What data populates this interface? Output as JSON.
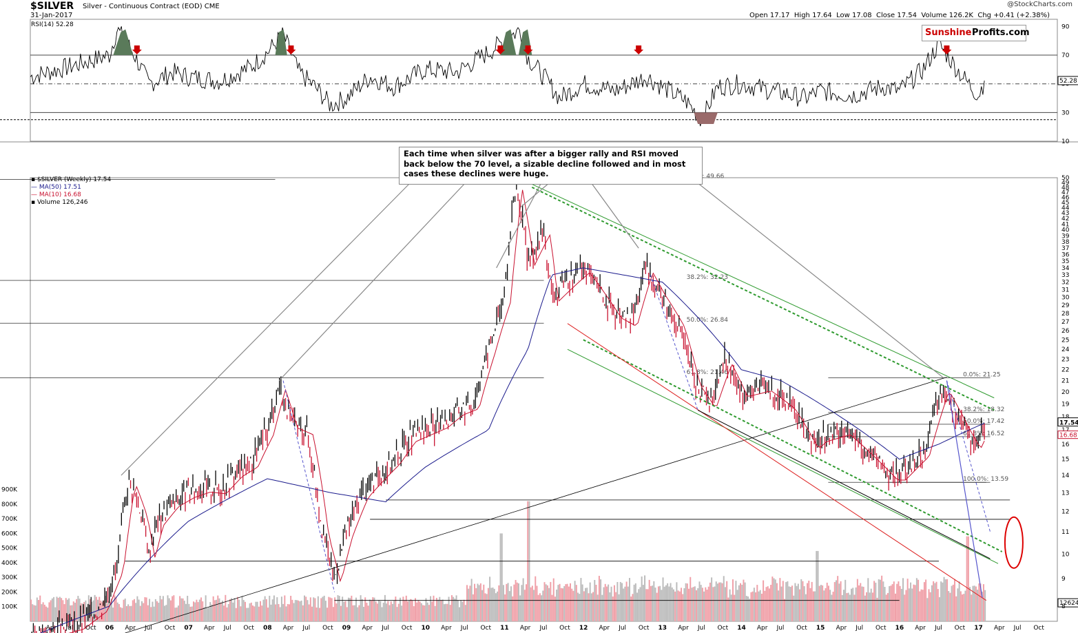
{
  "header": {
    "symbol": "$SILVER",
    "subtitle": "Silver - Continuous Contract (EOD)  CME",
    "date": "31-Jan-2017",
    "credit": "@StockCharts.com",
    "open_label": "Open",
    "open": "17.17",
    "high_label": "High",
    "high": "17.64",
    "low_label": "Low",
    "low": "17.08",
    "close_label": "Close",
    "close": "17.54",
    "volume_label": "Volume",
    "volume": "126.2K",
    "chg_label": "Chg",
    "chg": "+0.41 (+2.38%)"
  },
  "brand": {
    "part1": "Sunshine",
    "part2": "Profits.com"
  },
  "annotation": "Each time when silver was after a bigger rally and RSI moved back below the 70 level, a sizable decline followed and in most cases these declines were huge.",
  "colors": {
    "up": "#000000",
    "down": "#c8102e",
    "ma50": "#1a1a8c",
    "ma10": "#c8102e",
    "green": "#2e9a2e",
    "rsi_fill_ob": "#5a7a5a",
    "rsi_fill_os": "#9a6a6a",
    "arrow": "#cc0000",
    "volume": "#b0b0b0"
  },
  "chart_data": [
    {
      "type": "line",
      "name": "RSI(14) 52.28",
      "ylim": [
        10,
        95
      ],
      "hlines": [
        70,
        50,
        30
      ],
      "yticks": [
        "90",
        "70",
        "50",
        "30",
        "10"
      ],
      "last_value": "52.28",
      "x": [
        2005.0,
        2005.5,
        2006.0,
        2006.1,
        2006.3,
        2006.5,
        2006.8,
        2007.0,
        2007.4,
        2007.8,
        2008.0,
        2008.2,
        2008.4,
        2008.6,
        2008.8,
        2009.0,
        2009.3,
        2009.6,
        2010.0,
        2010.4,
        2010.8,
        2011.0,
        2011.2,
        2011.3,
        2011.5,
        2011.7,
        2012.0,
        2012.4,
        2012.8,
        2013.0,
        2013.3,
        2013.5,
        2013.7,
        2014.0,
        2014.4,
        2014.8,
        2015.0,
        2015.4,
        2015.8,
        2016.0,
        2016.3,
        2016.5,
        2016.8,
        2017.0,
        2017.08
      ],
      "y": [
        55,
        62,
        70,
        88,
        72,
        50,
        58,
        55,
        52,
        62,
        72,
        84,
        58,
        48,
        35,
        40,
        55,
        48,
        60,
        58,
        72,
        80,
        88,
        68,
        55,
        40,
        50,
        45,
        55,
        48,
        38,
        25,
        48,
        50,
        45,
        40,
        45,
        42,
        48,
        45,
        60,
        78,
        55,
        42,
        52.28
      ]
    },
    {
      "type": "line",
      "name": "$SILVER (Weekly) 17.54",
      "ylim": [
        7.5,
        50
      ],
      "log": true,
      "yticks": [
        "50",
        "49",
        "48",
        "47",
        "46",
        "45",
        "44",
        "43",
        "42",
        "41",
        "40",
        "39",
        "38",
        "37",
        "36",
        "35",
        "34",
        "33",
        "32",
        "31",
        "30",
        "29",
        "28",
        "27",
        "26",
        "25",
        "24",
        "23",
        "22",
        "21",
        "20",
        "19",
        "18",
        "17",
        "16",
        "15",
        "14",
        "13",
        "12",
        "11",
        "10",
        "9",
        "8"
      ],
      "x": [
        2005.0,
        2005.3,
        2005.6,
        2005.9,
        2006.1,
        2006.25,
        2006.4,
        2006.5,
        2006.6,
        2006.8,
        2007.0,
        2007.2,
        2007.4,
        2007.6,
        2007.8,
        2008.0,
        2008.15,
        2008.3,
        2008.5,
        2008.7,
        2008.85,
        2009.0,
        2009.2,
        2009.4,
        2009.6,
        2009.8,
        2010.0,
        2010.2,
        2010.4,
        2010.6,
        2010.8,
        2011.0,
        2011.15,
        2011.3,
        2011.5,
        2011.6,
        2011.8,
        2012.0,
        2012.2,
        2012.4,
        2012.6,
        2012.8,
        2012.95,
        2013.2,
        2013.4,
        2013.6,
        2013.8,
        2014.0,
        2014.3,
        2014.6,
        2014.9,
        2015.0,
        2015.3,
        2015.6,
        2015.9,
        2016.0,
        2016.3,
        2016.55,
        2016.8,
        2016.95,
        2017.08
      ],
      "y": [
        7.0,
        7.2,
        7.4,
        8.0,
        9.5,
        13.8,
        12.0,
        10.0,
        11.5,
        12.5,
        13.0,
        13.3,
        13.2,
        14.2,
        14.8,
        17.0,
        20.6,
        17.5,
        17.0,
        11.0,
        9.0,
        11.0,
        13.0,
        14.0,
        15.0,
        16.5,
        17.0,
        17.5,
        18.5,
        19.0,
        24.0,
        30.0,
        48.5,
        35.0,
        40.0,
        30.0,
        32.0,
        34.0,
        31.0,
        28.0,
        27.0,
        34.0,
        31.0,
        27.0,
        21.0,
        19.0,
        23.0,
        20.0,
        20.5,
        19.0,
        16.0,
        16.5,
        17.0,
        15.5,
        14.0,
        14.0,
        15.5,
        20.5,
        17.5,
        16.0,
        17.54
      ],
      "ma50": {
        "name": "MA(50) 17.51",
        "x": [
          2005.0,
          2006.0,
          2007.0,
          2008.0,
          2008.8,
          2009.5,
          2010.0,
          2010.8,
          2011.3,
          2011.6,
          2012.0,
          2012.5,
          2013.0,
          2013.5,
          2014.0,
          2014.5,
          2015.0,
          2015.5,
          2016.0,
          2016.5,
          2017.08
        ],
        "y": [
          7.0,
          8.0,
          11.5,
          13.8,
          13.0,
          12.5,
          14.5,
          17.0,
          24.0,
          33.0,
          34.0,
          33.0,
          32.0,
          27.0,
          22.0,
          21.0,
          19.0,
          17.0,
          15.0,
          16.0,
          17.51
        ]
      },
      "ma10": {
        "name": "MA(10) 16.68"
      },
      "fib_levels": [
        {
          "label": "0.0%: 49.66",
          "value": 49.66
        },
        {
          "label": "38.2%: 32.23",
          "value": 32.23
        },
        {
          "label": "50.0%: 26.84",
          "value": 26.84
        },
        {
          "label": "61.8%: 21.46",
          "value": 21.46
        },
        {
          "label": "0.0%: 21.25",
          "value": 21.25
        },
        {
          "label": "38.2%: 18.32",
          "value": 18.32
        },
        {
          "label": "50.0%: 17.42",
          "value": 17.42
        },
        {
          "label": "61.8%: 16.52",
          "value": 16.52
        },
        {
          "label": "100.0%: 13.59",
          "value": 13.59
        }
      ],
      "price_flags": [
        "17.54",
        "16.68"
      ]
    },
    {
      "type": "bar",
      "name": "Volume 126,246",
      "ylim": [
        0,
        950000
      ],
      "yticks": [
        "900K",
        "800K",
        "700K",
        "600K",
        "500K",
        "400K",
        "300K",
        "200K",
        "100K"
      ],
      "last_value": "126246",
      "peaks": [
        {
          "x": 2011.3,
          "y": 820000
        },
        {
          "x": 2010.95,
          "y": 600000
        },
        {
          "x": 2016.85,
          "y": 580000
        },
        {
          "x": 2014.95,
          "y": 480000
        }
      ]
    }
  ],
  "x_axis": {
    "labels": [
      "Apr",
      "Jul",
      "Oct",
      "06",
      "Apr",
      "Jul",
      "Oct",
      "07",
      "Apr",
      "Jul",
      "Oct",
      "08",
      "Apr",
      "Jul",
      "Oct",
      "09",
      "Apr",
      "Jul",
      "Oct",
      "10",
      "Apr",
      "Jul",
      "Oct",
      "11",
      "Apr",
      "Jul",
      "Oct",
      "12",
      "Apr",
      "Jul",
      "Oct",
      "13",
      "Apr",
      "Jul",
      "Oct",
      "14",
      "Apr",
      "Jul",
      "Oct",
      "15",
      "Apr",
      "Jul",
      "Oct",
      "16",
      "Apr",
      "Jul",
      "Oct",
      "17",
      "Apr",
      "Jul",
      "Oct"
    ],
    "start": 2005.25
  },
  "legend": {
    "price": "▪ $SILVER (Weekly) 17.54",
    "ma50": "— MA(50) 17.51",
    "ma10": "— MA(10) 16.68",
    "volume": "▪ Volume 126,246",
    "rsi": "RSI(14) 52.28"
  }
}
